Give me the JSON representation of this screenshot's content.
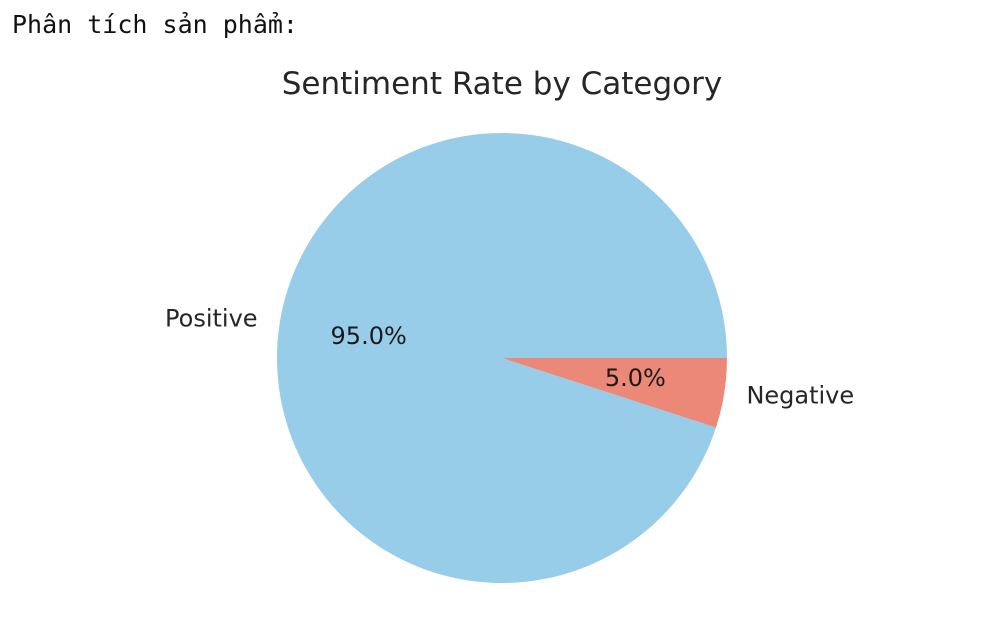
{
  "output": {
    "label": "Phân tích sản phẩm:"
  },
  "chart_data": {
    "type": "pie",
    "title": "Sentiment Rate by Category",
    "categories": [
      "Positive",
      "Negative"
    ],
    "values": [
      95.0,
      5.0
    ],
    "labels": [
      "95.0%",
      "5.0%"
    ],
    "colors": [
      "#97cde9",
      "#ec8877"
    ],
    "start_angle_deg": 0,
    "direction": "counterclockwise",
    "legend": "none"
  }
}
